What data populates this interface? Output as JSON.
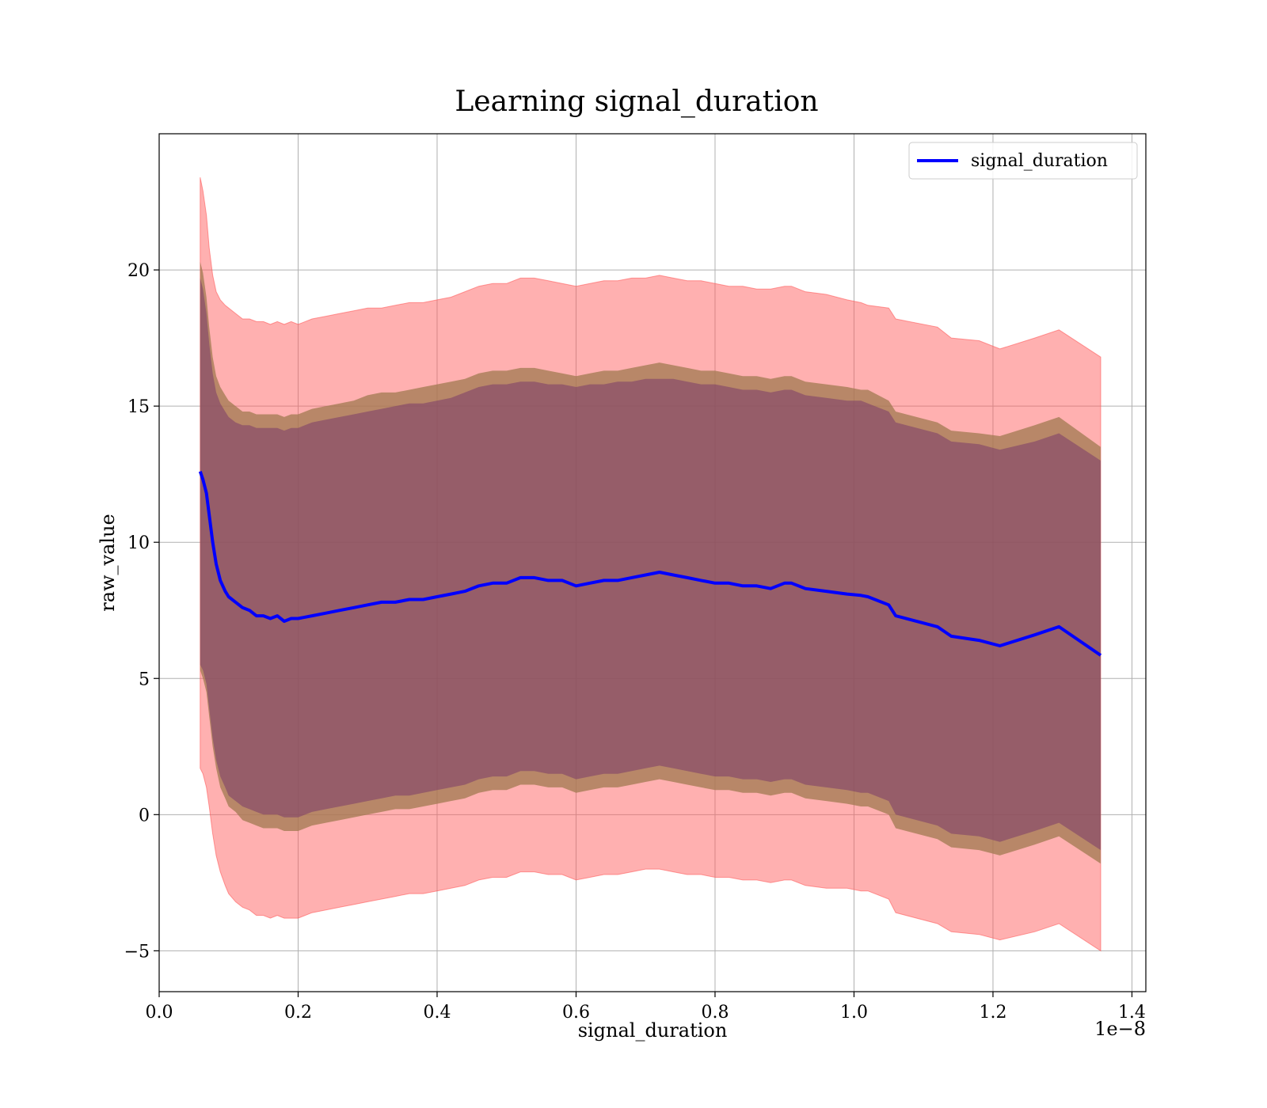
{
  "chart_data": {
    "type": "line",
    "title": "Learning signal_duration",
    "xlabel": "signal_duration",
    "ylabel": "raw_value",
    "x_offset_label": "1e−8",
    "xlim": [
      0.0,
      1.42
    ],
    "ylim": [
      -6.5,
      25.0
    ],
    "x_ticks": [
      0.0,
      0.2,
      0.4,
      0.6,
      0.8,
      1.0,
      1.2,
      1.4
    ],
    "x_tick_labels": [
      "0.0",
      "0.2",
      "0.4",
      "0.6",
      "0.8",
      "1.0",
      "1.2",
      "1.4"
    ],
    "y_ticks": [
      -5,
      0,
      5,
      10,
      15,
      20
    ],
    "y_tick_labels": [
      "−5",
      "0",
      "5",
      "10",
      "15",
      "20"
    ],
    "grid": true,
    "legend_position": "top-right",
    "colors": {
      "line": "#0000ff",
      "outer_band": "#ff5a5a",
      "outer_band_opacity": 0.48,
      "middle_band": "#a07a50",
      "middle_band_opacity": 0.75,
      "inner_band": "#7a3a6a",
      "inner_band_opacity": 0.55
    },
    "series": [
      {
        "name": "signal_duration",
        "x": [
          0.059,
          0.063,
          0.068,
          0.072,
          0.077,
          0.082,
          0.088,
          0.095,
          0.1,
          0.11,
          0.12,
          0.13,
          0.14,
          0.15,
          0.16,
          0.17,
          0.18,
          0.19,
          0.2,
          0.22,
          0.24,
          0.26,
          0.28,
          0.3,
          0.32,
          0.34,
          0.36,
          0.38,
          0.4,
          0.42,
          0.44,
          0.46,
          0.48,
          0.5,
          0.52,
          0.54,
          0.56,
          0.58,
          0.6,
          0.62,
          0.64,
          0.66,
          0.68,
          0.7,
          0.72,
          0.74,
          0.76,
          0.78,
          0.8,
          0.82,
          0.84,
          0.86,
          0.88,
          0.9,
          0.91,
          0.93,
          0.96,
          0.99,
          1.01,
          1.02,
          1.05,
          1.06,
          1.12,
          1.14,
          1.18,
          1.21,
          1.26,
          1.295,
          1.355
        ],
        "y": [
          12.6,
          12.3,
          11.8,
          11.0,
          10.0,
          9.2,
          8.6,
          8.2,
          8.0,
          7.8,
          7.6,
          7.5,
          7.3,
          7.3,
          7.2,
          7.3,
          7.1,
          7.2,
          7.2,
          7.3,
          7.4,
          7.5,
          7.6,
          7.7,
          7.8,
          7.8,
          7.9,
          7.9,
          8.0,
          8.1,
          8.2,
          8.4,
          8.5,
          8.5,
          8.7,
          8.7,
          8.6,
          8.6,
          8.4,
          8.5,
          8.6,
          8.6,
          8.7,
          8.8,
          8.9,
          8.8,
          8.7,
          8.6,
          8.5,
          8.5,
          8.4,
          8.4,
          8.3,
          8.5,
          8.5,
          8.3,
          8.2,
          8.1,
          8.05,
          8.0,
          7.7,
          7.3,
          6.9,
          6.55,
          6.4,
          6.2,
          6.6,
          6.9,
          5.85
        ],
        "outer_upper": [
          23.4,
          22.9,
          22.0,
          20.8,
          19.8,
          19.2,
          18.9,
          18.7,
          18.6,
          18.4,
          18.2,
          18.2,
          18.1,
          18.1,
          18.0,
          18.1,
          18.0,
          18.1,
          18.0,
          18.2,
          18.3,
          18.4,
          18.5,
          18.6,
          18.6,
          18.7,
          18.8,
          18.8,
          18.9,
          19.0,
          19.2,
          19.4,
          19.5,
          19.5,
          19.7,
          19.7,
          19.6,
          19.5,
          19.4,
          19.5,
          19.6,
          19.6,
          19.7,
          19.7,
          19.8,
          19.7,
          19.6,
          19.6,
          19.5,
          19.4,
          19.4,
          19.3,
          19.3,
          19.4,
          19.4,
          19.2,
          19.1,
          18.9,
          18.8,
          18.7,
          18.6,
          18.2,
          17.9,
          17.5,
          17.4,
          17.1,
          17.5,
          17.8,
          16.8
        ],
        "outer_lower": [
          1.7,
          1.5,
          1.0,
          0.3,
          -0.7,
          -1.5,
          -2.1,
          -2.6,
          -2.9,
          -3.2,
          -3.4,
          -3.5,
          -3.7,
          -3.7,
          -3.8,
          -3.7,
          -3.8,
          -3.8,
          -3.8,
          -3.6,
          -3.5,
          -3.4,
          -3.3,
          -3.2,
          -3.1,
          -3.0,
          -2.9,
          -2.9,
          -2.8,
          -2.7,
          -2.6,
          -2.4,
          -2.3,
          -2.3,
          -2.1,
          -2.1,
          -2.2,
          -2.2,
          -2.4,
          -2.3,
          -2.2,
          -2.2,
          -2.1,
          -2.0,
          -2.0,
          -2.1,
          -2.2,
          -2.2,
          -2.3,
          -2.3,
          -2.4,
          -2.4,
          -2.5,
          -2.4,
          -2.4,
          -2.6,
          -2.7,
          -2.7,
          -2.8,
          -2.8,
          -3.1,
          -3.6,
          -4.0,
          -4.3,
          -4.4,
          -4.6,
          -4.3,
          -4.0,
          -5.0
        ],
        "middle_upper": [
          20.3,
          19.9,
          19.0,
          17.9,
          16.8,
          16.1,
          15.7,
          15.4,
          15.2,
          15.0,
          14.8,
          14.8,
          14.7,
          14.7,
          14.7,
          14.7,
          14.6,
          14.7,
          14.7,
          14.9,
          15.0,
          15.1,
          15.2,
          15.4,
          15.5,
          15.5,
          15.6,
          15.7,
          15.8,
          15.9,
          16.0,
          16.2,
          16.3,
          16.3,
          16.4,
          16.4,
          16.3,
          16.2,
          16.1,
          16.2,
          16.3,
          16.3,
          16.4,
          16.5,
          16.6,
          16.5,
          16.4,
          16.3,
          16.3,
          16.2,
          16.1,
          16.1,
          16.0,
          16.1,
          16.1,
          15.9,
          15.8,
          15.7,
          15.6,
          15.6,
          15.2,
          14.8,
          14.4,
          14.1,
          14.0,
          13.9,
          14.3,
          14.6,
          13.5
        ],
        "middle_lower": [
          5.3,
          5.0,
          4.5,
          3.6,
          2.5,
          1.7,
          1.0,
          0.6,
          0.3,
          0.1,
          -0.2,
          -0.3,
          -0.4,
          -0.5,
          -0.5,
          -0.5,
          -0.6,
          -0.6,
          -0.6,
          -0.4,
          -0.3,
          -0.2,
          -0.1,
          0.0,
          0.1,
          0.2,
          0.2,
          0.3,
          0.4,
          0.5,
          0.6,
          0.8,
          0.9,
          0.9,
          1.1,
          1.1,
          1.0,
          1.0,
          0.8,
          0.9,
          1.0,
          1.0,
          1.1,
          1.2,
          1.3,
          1.2,
          1.1,
          1.0,
          0.9,
          0.9,
          0.8,
          0.8,
          0.7,
          0.8,
          0.8,
          0.6,
          0.5,
          0.4,
          0.3,
          0.3,
          0.0,
          -0.5,
          -0.9,
          -1.2,
          -1.3,
          -1.5,
          -1.1,
          -0.8,
          -1.8
        ],
        "inner_upper": [
          19.7,
          19.3,
          18.4,
          17.3,
          16.2,
          15.5,
          15.1,
          14.8,
          14.6,
          14.4,
          14.3,
          14.3,
          14.2,
          14.2,
          14.2,
          14.2,
          14.1,
          14.2,
          14.2,
          14.4,
          14.5,
          14.6,
          14.7,
          14.8,
          14.9,
          15.0,
          15.1,
          15.1,
          15.2,
          15.3,
          15.5,
          15.7,
          15.8,
          15.8,
          15.9,
          15.9,
          15.8,
          15.8,
          15.7,
          15.8,
          15.8,
          15.9,
          15.9,
          16.0,
          16.0,
          16.0,
          15.9,
          15.8,
          15.8,
          15.7,
          15.6,
          15.6,
          15.5,
          15.6,
          15.6,
          15.4,
          15.3,
          15.2,
          15.2,
          15.1,
          14.8,
          14.4,
          14.0,
          13.7,
          13.6,
          13.4,
          13.7,
          14.0,
          13.0
        ],
        "inner_lower": [
          5.5,
          5.3,
          4.8,
          3.9,
          2.8,
          2.0,
          1.4,
          1.0,
          0.7,
          0.5,
          0.3,
          0.2,
          0.1,
          0.0,
          0.0,
          0.0,
          -0.1,
          -0.1,
          -0.1,
          0.1,
          0.2,
          0.3,
          0.4,
          0.5,
          0.6,
          0.7,
          0.7,
          0.8,
          0.9,
          1.0,
          1.1,
          1.3,
          1.4,
          1.4,
          1.6,
          1.6,
          1.5,
          1.5,
          1.3,
          1.4,
          1.5,
          1.5,
          1.6,
          1.7,
          1.8,
          1.7,
          1.6,
          1.5,
          1.4,
          1.4,
          1.3,
          1.3,
          1.2,
          1.3,
          1.3,
          1.1,
          1.0,
          0.9,
          0.8,
          0.8,
          0.5,
          0.0,
          -0.4,
          -0.7,
          -0.8,
          -1.0,
          -0.6,
          -0.3,
          -1.3
        ]
      }
    ]
  }
}
